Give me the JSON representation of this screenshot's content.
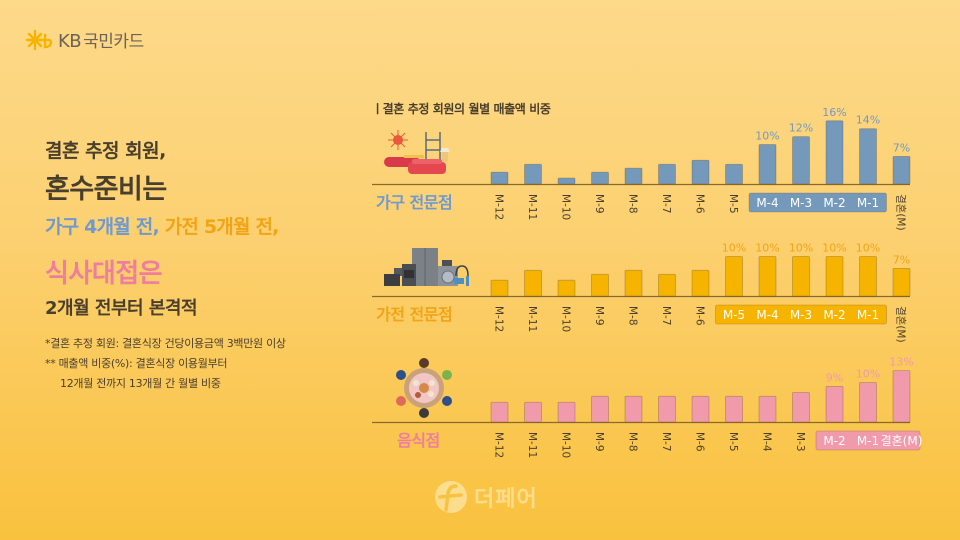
{
  "brand": {
    "logo_text": "KB",
    "logo_name": "국민카드",
    "logo_icon": "kb-star-icon"
  },
  "headline": {
    "line1": "결혼 추정 회원,",
    "line2": "혼수준비는",
    "line3_blue": "가구 4개월 전,",
    "line3_orange": "가전 5개월 전,",
    "line4": "식사대접은",
    "line5": "2개월 전부터 본격적"
  },
  "notes": {
    "note1": "*결혼 추정 회원: 결혼식장 건당이용금액 3백만원 이상",
    "note2": "** 매출액 비중(%): 결혼식장 이용월부터",
    "note3": "12개월 전까지 13개월 간 월별 비중"
  },
  "footer": {
    "logo_text": "더페어",
    "logo_icon": "thepair-f-icon"
  },
  "colors": {
    "furniture": "#7599bb",
    "appliance": "#f6b400",
    "restaurant": "#f19aab",
    "text_dark": "#4a3f2c",
    "baseline": "#8a6a2a"
  },
  "chart_data": [
    {
      "type": "bar",
      "title": "ㅣ결혼 추정 회원의 월별 매출액 비중",
      "category_label": "가구 전문점",
      "icon": "furniture-illustration",
      "color": "#7599bb",
      "categories": [
        "M-12",
        "M-11",
        "M-10",
        "M-9",
        "M-8",
        "M-7",
        "M-6",
        "M-5",
        "M-4",
        "M-3",
        "M-2",
        "M-1",
        "결혼(M)"
      ],
      "values": [
        3,
        5,
        1.5,
        3,
        4,
        5,
        6,
        5,
        10,
        12,
        16,
        14,
        7
      ],
      "labels": [
        "",
        "",
        "",
        "",
        "",
        "",
        "",
        "",
        "10%",
        "12%",
        "16%",
        "14%",
        "7%"
      ],
      "highlight_range": [
        "M-4",
        "M-3",
        "M-2",
        "M-1"
      ],
      "ylabel": "매출액 비중(%)",
      "ylim": [
        0,
        17
      ]
    },
    {
      "type": "bar",
      "category_label": "가전 전문점",
      "icon": "appliance-illustration",
      "color": "#f6b400",
      "categories": [
        "M-12",
        "M-11",
        "M-10",
        "M-9",
        "M-8",
        "M-7",
        "M-6",
        "M-5",
        "M-4",
        "M-3",
        "M-2",
        "M-1",
        "결혼(M)"
      ],
      "values": [
        4,
        6.5,
        4,
        5.5,
        6.5,
        5.5,
        6.5,
        10,
        10,
        10,
        10,
        10,
        7
      ],
      "labels": [
        "",
        "",
        "",
        "",
        "",
        "",
        "",
        "10%",
        "10%",
        "10%",
        "10%",
        "10%",
        "7%"
      ],
      "highlight_range": [
        "M-5",
        "M-4",
        "M-3",
        "M-2",
        "M-1"
      ],
      "ylabel": "매출액 비중(%)",
      "ylim": [
        0,
        17
      ]
    },
    {
      "type": "bar",
      "category_label": "음식점",
      "icon": "dining-table-illustration",
      "color": "#f19aab",
      "categories": [
        "M-12",
        "M-11",
        "M-10",
        "M-9",
        "M-8",
        "M-7",
        "M-6",
        "M-5",
        "M-4",
        "M-3",
        "M-2",
        "M-1",
        "결혼(M)"
      ],
      "values": [
        5,
        5,
        5,
        6.5,
        6.5,
        6.5,
        6.5,
        6.5,
        6.5,
        7.5,
        9,
        10,
        13
      ],
      "labels": [
        "",
        "",
        "",
        "",
        "",
        "",
        "",
        "",
        "",
        "",
        "9%",
        "10%",
        "13%"
      ],
      "highlight_range": [
        "M-2",
        "M-1",
        "결혼(M)"
      ],
      "ylabel": "매출액 비중(%)",
      "ylim": [
        0,
        17
      ]
    }
  ]
}
